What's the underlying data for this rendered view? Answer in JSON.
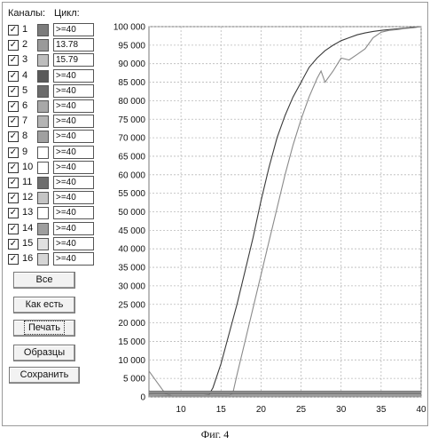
{
  "panel": {
    "channels_label": "Каналы:",
    "cycle_label": "Цикл:"
  },
  "channels": [
    {
      "num": "1",
      "checked": true,
      "cycle": ">=40",
      "color": "#7c7c7c"
    },
    {
      "num": "2",
      "checked": true,
      "cycle": "13.78",
      "color": "#9a9a9a"
    },
    {
      "num": "3",
      "checked": true,
      "cycle": "15.79",
      "color": "#bdbdbd"
    },
    {
      "num": "4",
      "checked": true,
      "cycle": ">=40",
      "color": "#5a5a5a"
    },
    {
      "num": "5",
      "checked": true,
      "cycle": ">=40",
      "color": "#6c6c6c"
    },
    {
      "num": "6",
      "checked": true,
      "cycle": ">=40",
      "color": "#a8a8a8"
    },
    {
      "num": "7",
      "checked": true,
      "cycle": ">=40",
      "color": "#b4b4b4"
    },
    {
      "num": "8",
      "checked": true,
      "cycle": ">=40",
      "color": "#a0a0a0"
    },
    {
      "num": "9",
      "checked": true,
      "cycle": ">=40",
      "color": "#ffffff"
    },
    {
      "num": "10",
      "checked": true,
      "cycle": ">=40",
      "color": "#ffffff"
    },
    {
      "num": "11",
      "checked": true,
      "cycle": ">=40",
      "color": "#6e6e6e"
    },
    {
      "num": "12",
      "checked": true,
      "cycle": ">=40",
      "color": "#c4c4c4"
    },
    {
      "num": "13",
      "checked": true,
      "cycle": ">=40",
      "color": "#ffffff"
    },
    {
      "num": "14",
      "checked": true,
      "cycle": ">=40",
      "color": "#9e9e9e"
    },
    {
      "num": "15",
      "checked": true,
      "cycle": ">=40",
      "color": "#e0e0e0"
    },
    {
      "num": "16",
      "checked": true,
      "cycle": ">=40",
      "color": "#d6d6d6"
    }
  ],
  "buttons": {
    "all": "Все",
    "as_is": "Как есть",
    "print": "Печать",
    "samples": "Образцы",
    "save": "Сохранить"
  },
  "chart_data": {
    "type": "line",
    "xlabel": "",
    "ylabel": "",
    "xlim": [
      6,
      40
    ],
    "ylim": [
      0,
      100000
    ],
    "x_ticks": [
      10,
      15,
      20,
      25,
      30,
      35,
      40
    ],
    "y_ticks": [
      0,
      5000,
      10000,
      15000,
      20000,
      25000,
      30000,
      35000,
      40000,
      45000,
      50000,
      55000,
      60000,
      65000,
      70000,
      75000,
      80000,
      85000,
      90000,
      95000,
      100000
    ],
    "x_tick_labels": [
      "10",
      "15",
      "20",
      "25",
      "30",
      "35",
      "40"
    ],
    "y_tick_labels": [
      "0",
      "5 000",
      "10 000",
      "15 000",
      "20 000",
      "25 000",
      "30 000",
      "35 000",
      "40 000",
      "45 000",
      "50 000",
      "55 000",
      "60 000",
      "65 000",
      "70 000",
      "75 000",
      "80 000",
      "85 000",
      "90 000",
      "95 000",
      "100 000"
    ],
    "grid": true,
    "series": [
      {
        "color": "#3a3a3a",
        "x": [
          6,
          8,
          10,
          12,
          13.5,
          14,
          15,
          16,
          17,
          18,
          19,
          20,
          21,
          22,
          23,
          24,
          25,
          26,
          27,
          28,
          29,
          30,
          31,
          32,
          33,
          34,
          35,
          36,
          37,
          38,
          39,
          40
        ],
        "y": [
          500,
          400,
          300,
          300,
          600,
          2500,
          9000,
          17000,
          25000,
          34000,
          43000,
          53000,
          62000,
          70000,
          76000,
          81000,
          85000,
          89000,
          91500,
          93500,
          95000,
          96200,
          97000,
          97800,
          98300,
          98700,
          99000,
          99200,
          99400,
          99600,
          99800,
          100000
        ]
      },
      {
        "color": "#8a8a8a",
        "x": [
          6,
          7,
          8,
          9,
          10,
          12,
          14,
          15,
          16,
          16.5,
          17,
          18,
          19,
          20,
          21,
          22,
          23,
          24,
          25,
          26,
          27,
          27.5,
          28,
          29,
          30,
          31,
          32,
          33,
          34,
          35,
          36,
          37,
          38,
          39,
          40
        ],
        "y": [
          7000,
          4000,
          1000,
          300,
          200,
          200,
          200,
          300,
          300,
          1200,
          6000,
          15000,
          24000,
          33000,
          42000,
          51000,
          60000,
          68000,
          75000,
          81000,
          86000,
          88000,
          85000,
          88000,
          91500,
          91000,
          92500,
          94000,
          97000,
          98500,
          99000,
          99200,
          99500,
          99700,
          100000
        ]
      },
      {
        "color": "#555555",
        "x": [
          6,
          40
        ],
        "y": [
          1500,
          1500
        ]
      },
      {
        "color": "#666666",
        "x": [
          6,
          40
        ],
        "y": [
          1100,
          1100
        ]
      },
      {
        "color": "#777777",
        "x": [
          6,
          40
        ],
        "y": [
          800,
          800
        ]
      },
      {
        "color": "#888888",
        "x": [
          6,
          40
        ],
        "y": [
          500,
          500
        ]
      },
      {
        "color": "#999999",
        "x": [
          6,
          40
        ],
        "y": [
          200,
          200
        ]
      },
      {
        "color": "#aaaaaa",
        "x": [
          6,
          40
        ],
        "y": [
          1300,
          1300
        ]
      }
    ]
  },
  "caption": "Фиг. 4"
}
